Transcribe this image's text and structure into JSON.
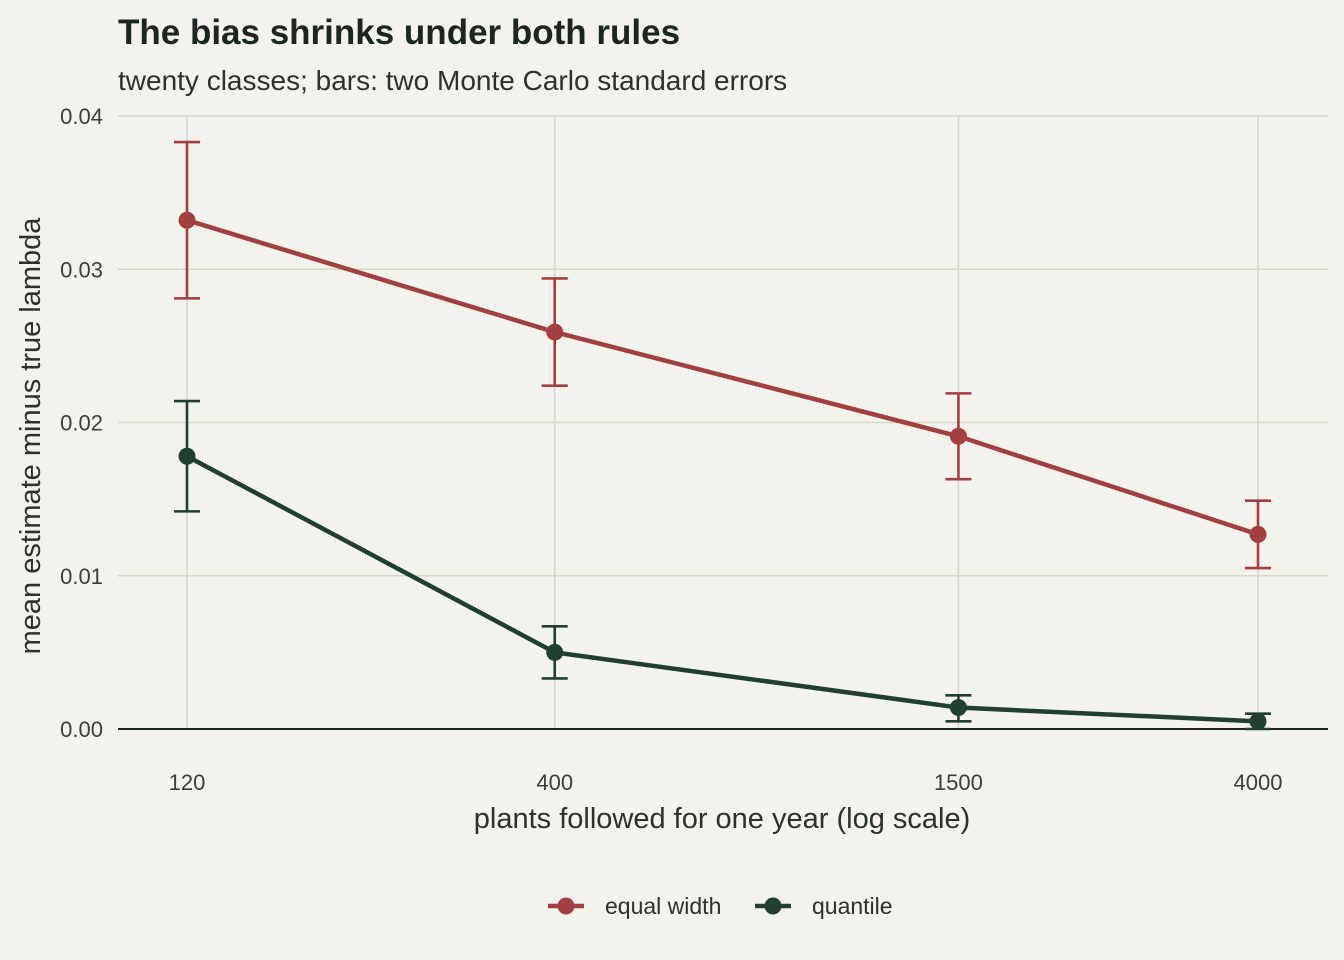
{
  "chart_data": {
    "type": "line",
    "title": "The bias shrinks under both rules",
    "subtitle": "twenty classes; bars: two Monte Carlo standard errors",
    "xlabel": "plants followed for one year (log scale)",
    "ylabel": "mean estimate minus true lambda",
    "x_scale": "log",
    "x": [
      120,
      400,
      1500,
      4000
    ],
    "x_ticks": [
      "120",
      "400",
      "1500",
      "4000"
    ],
    "y_ticks": [
      "0.00",
      "0.01",
      "0.02",
      "0.03",
      "0.04"
    ],
    "ylim": [
      0,
      0.04
    ],
    "grid": true,
    "legend_position": "bottom",
    "series": [
      {
        "name": "equal width",
        "color": "#a23f3f",
        "values": [
          0.0332,
          0.0259,
          0.0191,
          0.0127
        ],
        "lower": [
          0.0281,
          0.0224,
          0.0163,
          0.0105
        ],
        "upper": [
          0.0383,
          0.0294,
          0.0219,
          0.0149
        ]
      },
      {
        "name": "quantile",
        "color": "#1f4030",
        "values": [
          0.0178,
          0.005,
          0.0014,
          0.0005
        ],
        "lower": [
          0.0142,
          0.0033,
          0.0005,
          0.0
        ],
        "upper": [
          0.0214,
          0.0067,
          0.0022,
          0.001
        ]
      }
    ]
  }
}
